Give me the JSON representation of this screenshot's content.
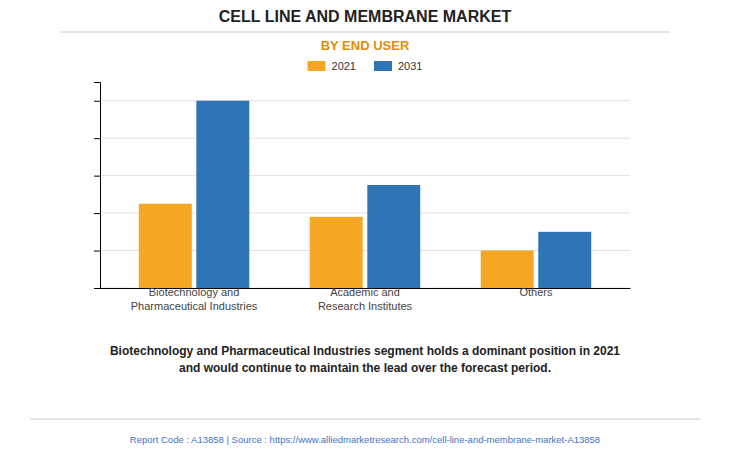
{
  "chart_data": {
    "type": "bar",
    "title": "CELL LINE AND MEMBRANE MARKET",
    "subtitle": "BY END USER",
    "categories": [
      "Biotechnology and\nPharmaceutical Industries",
      "Academic and\nResearch Institutes",
      "Others"
    ],
    "series": [
      {
        "name": "2021",
        "color": "#F5A623",
        "values": [
          45,
          38,
          20
        ]
      },
      {
        "name": "2031",
        "color": "#2E75B6",
        "values": [
          100,
          55,
          30
        ]
      }
    ],
    "ylim": [
      0,
      110
    ],
    "yticks": [
      0,
      20,
      40,
      60,
      80,
      100
    ],
    "grid": true,
    "legend": "top",
    "tick_labels": "x",
    "annotations": [
      "Biotechnology and Pharmaceutical Industries segment holds a dominant position in 2021\nand would continue to maintain the lead over the forecast period.",
      "Report Code : A13858  |  Source : https://www.alliedmarketresearch.com/cell-line-and-membrane-market-A13858"
    ]
  }
}
